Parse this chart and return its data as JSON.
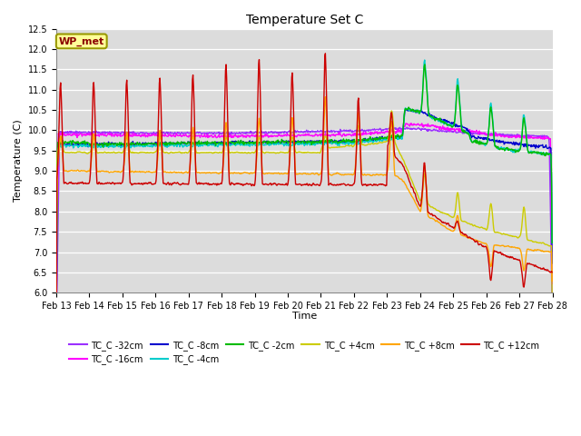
{
  "title": "Temperature Set C",
  "xlabel": "Time",
  "ylabel": "Temperature (C)",
  "ylim": [
    6.0,
    12.5
  ],
  "annotation": "WP_met",
  "x_tick_labels": [
    "Feb 13",
    "Feb 14",
    "Feb 15",
    "Feb 16",
    "Feb 17",
    "Feb 18",
    "Feb 19",
    "Feb 20",
    "Feb 21",
    "Feb 22",
    "Feb 23",
    "Feb 24",
    "Feb 25",
    "Feb 26",
    "Feb 27",
    "Feb 28"
  ],
  "series_colors": {
    "TC_C -32cm": "#9B30FF",
    "TC_C -16cm": "#FF00FF",
    "TC_C -8cm": "#0000CD",
    "TC_C -4cm": "#00CCCC",
    "TC_C -2cm": "#00BB00",
    "TC_C +4cm": "#CCCC00",
    "TC_C +8cm": "#FFA500",
    "TC_C +12cm": "#CC0000"
  },
  "plot_bg_color": "#DCDCDC",
  "fig_bg_color": "#FFFFFF"
}
